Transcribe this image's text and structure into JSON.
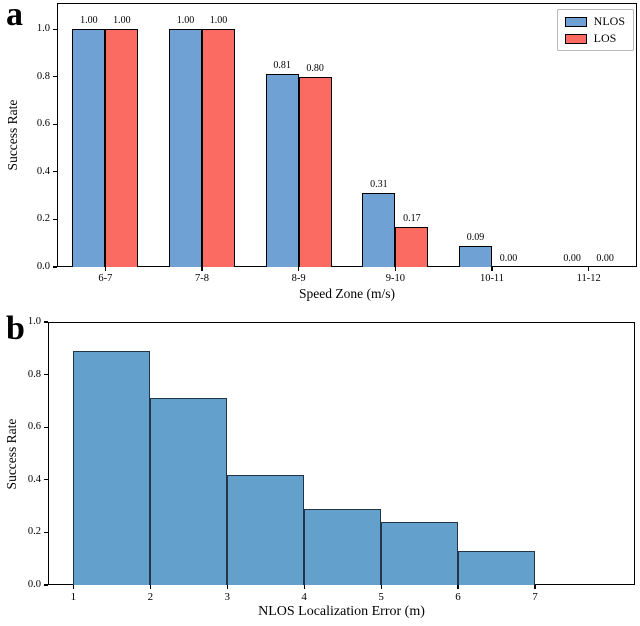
{
  "figure": {
    "panel_a_letter": "a",
    "panel_b_letter": "b"
  },
  "chart_data": [
    {
      "type": "bar",
      "panel": "a",
      "categories": [
        "6-7",
        "7-8",
        "8-9",
        "9-10",
        "10-11",
        "11-12"
      ],
      "series": [
        {
          "name": "NLOS",
          "color": "#6FA1D4",
          "values": [
            1.0,
            1.0,
            0.81,
            0.31,
            0.09,
            0.0
          ]
        },
        {
          "name": "LOS",
          "color": "#FC6B62",
          "values": [
            1.0,
            1.0,
            0.8,
            0.17,
            0.0,
            0.0
          ]
        }
      ],
      "xlabel": "Speed Zone (m/s)",
      "ylabel": "Success Rate",
      "ylim": [
        0,
        1.11
      ],
      "yticks": [
        "0.0",
        "0.2",
        "0.4",
        "0.6",
        "0.8",
        "1.0"
      ],
      "edge_color": "#000000",
      "value_labels_shown": true,
      "grid": false,
      "legend": {
        "position": "upper right",
        "entries": [
          "NLOS",
          "LOS"
        ]
      }
    },
    {
      "type": "bar",
      "panel": "b",
      "subtype": "histogram",
      "x_bin_edges": [
        1,
        2,
        3,
        4,
        5,
        6,
        7
      ],
      "values": [
        0.89,
        0.71,
        0.42,
        0.29,
        0.24,
        0.13
      ],
      "xlabel": "NLOS Localization Error (m)",
      "ylabel": "Success Rate",
      "xlim": [
        0.67,
        8.3
      ],
      "ylim": [
        0,
        1.0
      ],
      "xticks": [
        "1",
        "2",
        "3",
        "4",
        "5",
        "6",
        "7"
      ],
      "yticks": [
        "0.0",
        "0.2",
        "0.4",
        "0.6",
        "0.8",
        "1.0"
      ],
      "bar_color": "#63A0CC",
      "edge_color": "#223546",
      "grid": false
    }
  ]
}
